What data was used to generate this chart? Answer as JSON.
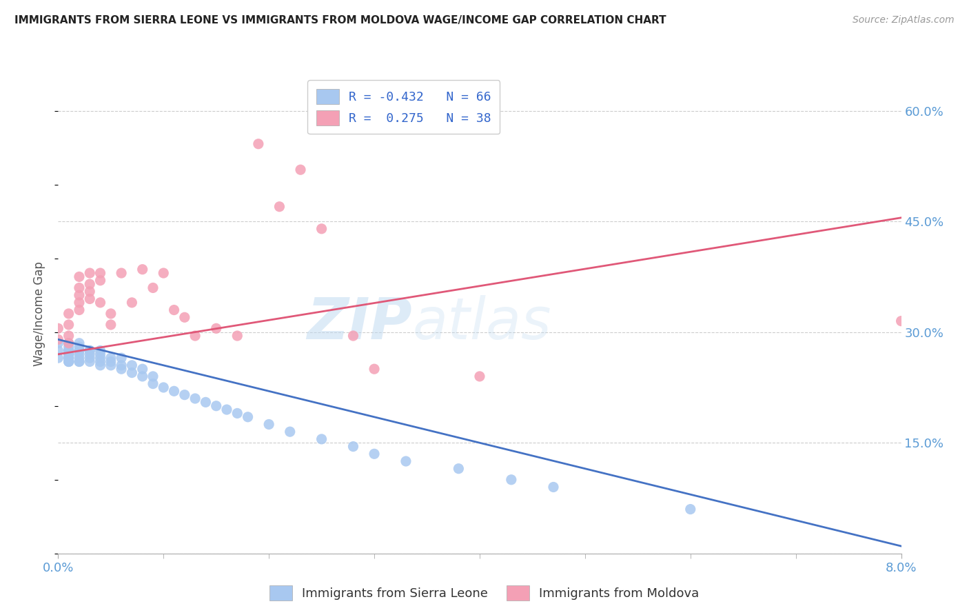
{
  "title": "IMMIGRANTS FROM SIERRA LEONE VS IMMIGRANTS FROM MOLDOVA WAGE/INCOME GAP CORRELATION CHART",
  "source": "Source: ZipAtlas.com",
  "ylabel": "Wage/Income Gap",
  "yticks": [
    0.0,
    0.15,
    0.3,
    0.45,
    0.6
  ],
  "xlim": [
    0.0,
    0.08
  ],
  "ylim": [
    0.0,
    0.65
  ],
  "series1_color": "#A8C8F0",
  "series2_color": "#F4A0B5",
  "trendline1_color": "#4472C4",
  "trendline2_color": "#E05878",
  "watermark_text": "ZIPatlas",
  "background_color": "#FFFFFF",
  "grid_color": "#CCCCCC",
  "axis_label_color": "#5B9BD5",
  "title_color": "#222222",
  "legend_label1": "R = -0.432   N = 66",
  "legend_label2": "R =  0.275   N = 38",
  "bottom_label1": "Immigrants from Sierra Leone",
  "bottom_label2": "Immigrants from Moldova",
  "sierra_leone_x": [
    0.0,
    0.0,
    0.0,
    0.001,
    0.001,
    0.001,
    0.001,
    0.001,
    0.001,
    0.001,
    0.001,
    0.001,
    0.001,
    0.001,
    0.001,
    0.001,
    0.001,
    0.002,
    0.002,
    0.002,
    0.002,
    0.002,
    0.002,
    0.002,
    0.002,
    0.003,
    0.003,
    0.003,
    0.003,
    0.003,
    0.004,
    0.004,
    0.004,
    0.004,
    0.004,
    0.005,
    0.005,
    0.005,
    0.006,
    0.006,
    0.006,
    0.007,
    0.007,
    0.008,
    0.008,
    0.009,
    0.009,
    0.01,
    0.011,
    0.012,
    0.013,
    0.014,
    0.015,
    0.016,
    0.017,
    0.018,
    0.02,
    0.022,
    0.025,
    0.028,
    0.03,
    0.033,
    0.038,
    0.043,
    0.047,
    0.06
  ],
  "sierra_leone_y": [
    0.275,
    0.285,
    0.265,
    0.27,
    0.28,
    0.265,
    0.26,
    0.275,
    0.27,
    0.285,
    0.26,
    0.275,
    0.27,
    0.265,
    0.26,
    0.275,
    0.27,
    0.285,
    0.275,
    0.265,
    0.27,
    0.26,
    0.275,
    0.28,
    0.26,
    0.265,
    0.275,
    0.27,
    0.26,
    0.275,
    0.265,
    0.255,
    0.275,
    0.26,
    0.27,
    0.265,
    0.255,
    0.26,
    0.25,
    0.265,
    0.255,
    0.245,
    0.255,
    0.24,
    0.25,
    0.23,
    0.24,
    0.225,
    0.22,
    0.215,
    0.21,
    0.205,
    0.2,
    0.195,
    0.19,
    0.185,
    0.175,
    0.165,
    0.155,
    0.145,
    0.135,
    0.125,
    0.115,
    0.1,
    0.09,
    0.06
  ],
  "moldova_x": [
    0.0,
    0.0,
    0.001,
    0.001,
    0.001,
    0.001,
    0.002,
    0.002,
    0.002,
    0.002,
    0.002,
    0.003,
    0.003,
    0.003,
    0.003,
    0.004,
    0.004,
    0.004,
    0.005,
    0.005,
    0.006,
    0.007,
    0.008,
    0.009,
    0.01,
    0.011,
    0.012,
    0.013,
    0.015,
    0.017,
    0.019,
    0.021,
    0.023,
    0.025,
    0.028,
    0.03,
    0.04,
    0.08
  ],
  "moldova_y": [
    0.29,
    0.305,
    0.285,
    0.295,
    0.31,
    0.325,
    0.34,
    0.35,
    0.33,
    0.36,
    0.375,
    0.345,
    0.355,
    0.365,
    0.38,
    0.34,
    0.37,
    0.38,
    0.31,
    0.325,
    0.38,
    0.34,
    0.385,
    0.36,
    0.38,
    0.33,
    0.32,
    0.295,
    0.305,
    0.295,
    0.555,
    0.47,
    0.52,
    0.44,
    0.295,
    0.25,
    0.24,
    0.315
  ],
  "trendline1_x": [
    0.0,
    0.08
  ],
  "trendline1_y": [
    0.29,
    0.01
  ],
  "trendline2_x": [
    0.0,
    0.08
  ],
  "trendline2_y": [
    0.27,
    0.455
  ]
}
